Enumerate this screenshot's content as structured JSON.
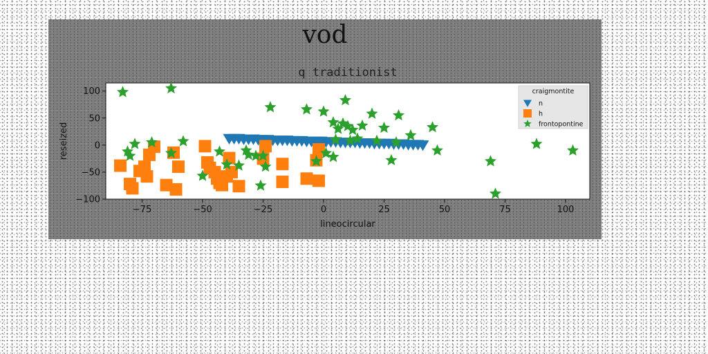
{
  "chart_data": {
    "type": "scatter",
    "title": "vod",
    "subtitle": "q traditionist",
    "xlabel": "lineocircular",
    "ylabel": "reseized",
    "xlim": [
      -90,
      110
    ],
    "ylim": [
      -100,
      115
    ],
    "xticks": [
      -75,
      -50,
      -25,
      0,
      25,
      50,
      75,
      100
    ],
    "yticks": [
      -100,
      -50,
      0,
      50,
      100
    ],
    "grid": false,
    "legend": {
      "title": "craigmontite",
      "placement": "top-right"
    },
    "series": [
      {
        "name": "n",
        "marker": "triangle-down",
        "color": "#1f77b4",
        "points": [
          [
            -39,
            12
          ],
          [
            -37,
            12
          ],
          [
            -35,
            12
          ],
          [
            -33,
            11
          ],
          [
            -31,
            11
          ],
          [
            -29,
            11
          ],
          [
            -27,
            10
          ],
          [
            -25,
            10
          ],
          [
            -23,
            10
          ],
          [
            -21,
            9
          ],
          [
            -19,
            9
          ],
          [
            -17,
            9
          ],
          [
            -15,
            9
          ],
          [
            -13,
            8
          ],
          [
            -11,
            8
          ],
          [
            -9,
            8
          ],
          [
            -7,
            7
          ],
          [
            -5,
            7
          ],
          [
            -3,
            7
          ],
          [
            -1,
            7
          ],
          [
            1,
            6
          ],
          [
            3,
            6
          ],
          [
            5,
            6
          ],
          [
            7,
            5
          ],
          [
            9,
            5
          ],
          [
            11,
            5
          ],
          [
            13,
            5
          ],
          [
            15,
            4
          ],
          [
            17,
            4
          ],
          [
            19,
            4
          ],
          [
            21,
            3
          ],
          [
            23,
            3
          ],
          [
            25,
            3
          ],
          [
            27,
            3
          ],
          [
            29,
            2
          ],
          [
            31,
            2
          ],
          [
            33,
            2
          ],
          [
            35,
            1
          ],
          [
            37,
            1
          ],
          [
            39,
            1
          ],
          [
            41,
            0
          ]
        ]
      },
      {
        "name": "h",
        "marker": "square",
        "color": "#ff7f0e",
        "points": [
          [
            -84,
            -38
          ],
          [
            -80,
            -72
          ],
          [
            -79,
            -80
          ],
          [
            -76,
            -48
          ],
          [
            -74,
            -40
          ],
          [
            -73,
            -58
          ],
          [
            -72,
            -18
          ],
          [
            -70,
            -3
          ],
          [
            -65,
            -74
          ],
          [
            -62,
            -14
          ],
          [
            -61,
            -82
          ],
          [
            -60,
            -40
          ],
          [
            -49,
            -2
          ],
          [
            -48,
            -32
          ],
          [
            -47,
            -42
          ],
          [
            -45,
            -50
          ],
          [
            -44,
            -62
          ],
          [
            -43,
            -70
          ],
          [
            -42,
            -74
          ],
          [
            -40,
            -58
          ],
          [
            -39,
            -24
          ],
          [
            -38,
            -50
          ],
          [
            -35,
            -76
          ],
          [
            -25,
            -25
          ],
          [
            -24,
            -2
          ],
          [
            -17,
            -35
          ],
          [
            -17,
            -68
          ],
          [
            -7,
            -62
          ],
          [
            -3,
            -28
          ],
          [
            -2,
            -8
          ],
          [
            -2,
            -66
          ]
        ]
      },
      {
        "name": "frontopontine",
        "marker": "star",
        "color": "#2ca02c",
        "points": [
          [
            -83,
            98
          ],
          [
            -81,
            -12
          ],
          [
            -80,
            -20
          ],
          [
            -78,
            2
          ],
          [
            -71,
            5
          ],
          [
            -63,
            105
          ],
          [
            -63,
            -15
          ],
          [
            -58,
            7
          ],
          [
            -50,
            -57
          ],
          [
            -43,
            -12
          ],
          [
            -40,
            -36
          ],
          [
            -35,
            -38
          ],
          [
            -32,
            -10
          ],
          [
            -31,
            -18
          ],
          [
            -28,
            -20
          ],
          [
            -26,
            -75
          ],
          [
            -25,
            -20
          ],
          [
            -24,
            -40
          ],
          [
            -22,
            70
          ],
          [
            -7,
            66
          ],
          [
            -3,
            -30
          ],
          [
            0,
            62
          ],
          [
            1,
            -15
          ],
          [
            4,
            42
          ],
          [
            4,
            -22
          ],
          [
            5,
            10
          ],
          [
            6,
            30
          ],
          [
            8,
            40
          ],
          [
            9,
            83
          ],
          [
            10,
            35
          ],
          [
            11,
            8
          ],
          [
            12,
            28
          ],
          [
            14,
            12
          ],
          [
            16,
            36
          ],
          [
            20,
            58
          ],
          [
            22,
            8
          ],
          [
            25,
            32
          ],
          [
            28,
            -28
          ],
          [
            30,
            5
          ],
          [
            31,
            55
          ],
          [
            36,
            18
          ],
          [
            45,
            33
          ],
          [
            47,
            -10
          ],
          [
            69,
            -30
          ],
          [
            71,
            -90
          ],
          [
            88,
            2
          ],
          [
            103,
            -10
          ]
        ]
      }
    ]
  }
}
